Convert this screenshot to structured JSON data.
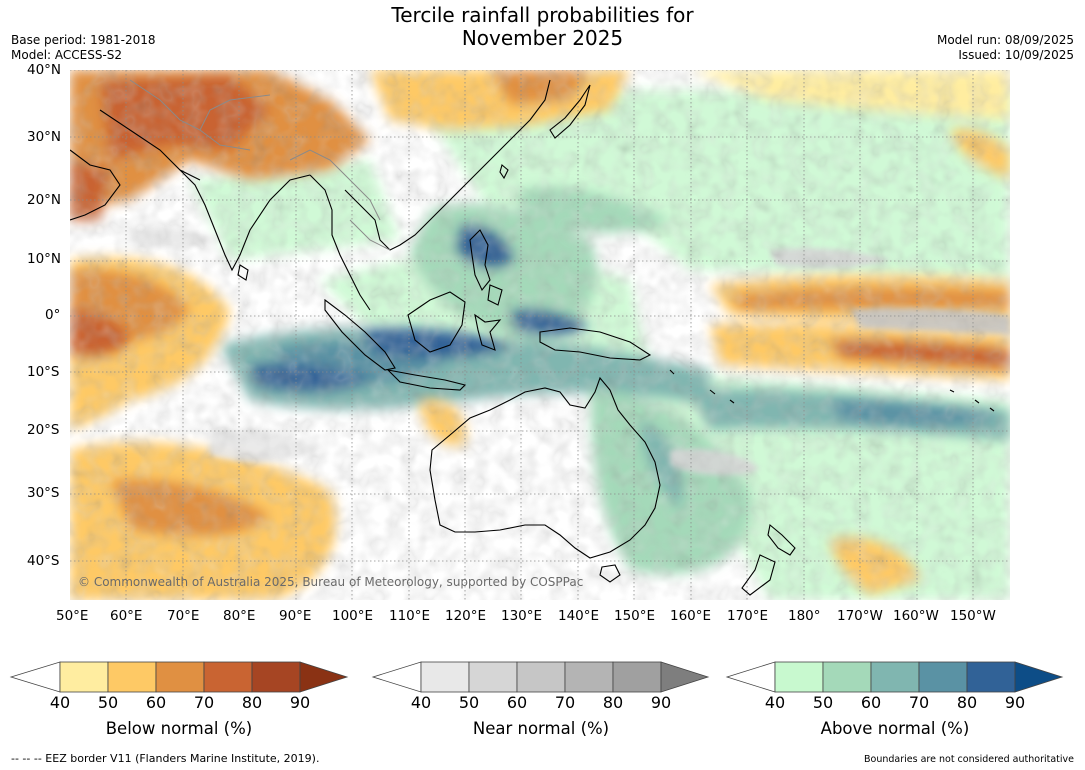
{
  "title_line1": "Tercile rainfall probabilities for",
  "title_line2": "November 2025",
  "base_period": "Base period: 1981-2018",
  "model": "Model: ACCESS-S2",
  "model_run": "Model run: 08/09/2025",
  "issued": "Issued: 10/09/2025",
  "copyright": "© Commonwealth of Australia 2025, Bureau of Meteorology, supported by COSPPac",
  "lat_labels": [
    "40°N",
    "30°N",
    "20°N",
    "10°N",
    "0°",
    "10°S",
    "20°S",
    "30°S",
    "40°S"
  ],
  "lon_labels": [
    "50°E",
    "60°E",
    "70°E",
    "80°E",
    "90°E",
    "100°E",
    "110°E",
    "120°E",
    "130°E",
    "140°E",
    "150°E",
    "160°E",
    "170°E",
    "180°",
    "170°W",
    "160°W",
    "150°W"
  ],
  "colorbars": [
    {
      "label": "Below normal (%)",
      "ticks": [
        "40",
        "50",
        "60",
        "70",
        "80",
        "90"
      ],
      "colors": [
        "#ffeda0",
        "#fec965",
        "#e09042",
        "#c96432",
        "#a64523",
        "#8a3214"
      ]
    },
    {
      "label": "Near normal (%)",
      "ticks": [
        "40",
        "50",
        "60",
        "70",
        "80",
        "90"
      ],
      "colors": [
        "#e8e8e8",
        "#d6d6d6",
        "#c6c6c6",
        "#b4b4b4",
        "#a0a0a0",
        "#7e7e7e"
      ]
    },
    {
      "label": "Above normal (%)",
      "ticks": [
        "40",
        "50",
        "60",
        "70",
        "80",
        "90"
      ],
      "colors": [
        "#c8f9cf",
        "#a4d9b9",
        "#80b6b0",
        "#5a92a4",
        "#316297",
        "#0d4d87"
      ]
    }
  ],
  "eez_note": "--  --  -- EEZ border V11 (Flanders Marine Institute, 2019).",
  "boundaries_note": "Boundaries are not considered authoritative"
}
